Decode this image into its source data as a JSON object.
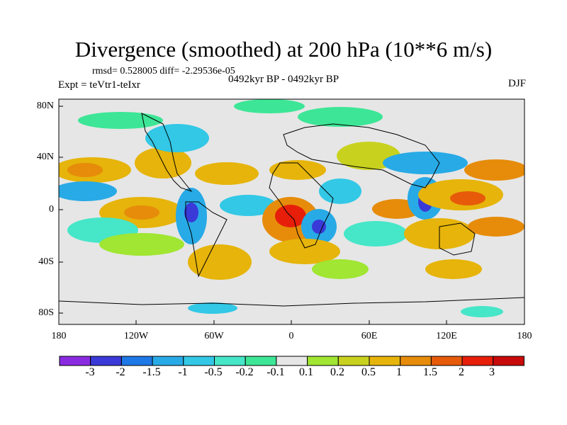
{
  "title": "Divergence (smoothed) at 200 hPa (10**6 m/s)",
  "stats": "rmsd= 0.528005 diff= -2.29536e-05",
  "expt": "Expt = teVtr1-teIxr",
  "period": "0492kyr BP - 0492kyr BP",
  "season": "DJF",
  "lat_labels": [
    "80N",
    "40N",
    "0",
    "40S",
    "80S"
  ],
  "lon_labels": [
    "180",
    "120W",
    "60W",
    "0",
    "60E",
    "120E",
    "180"
  ],
  "colorbar": {
    "labels": [
      "-3",
      "-2",
      "-1.5",
      "-1",
      "-0.5",
      "-0.2",
      "-0.1",
      "0.1",
      "0.2",
      "0.5",
      "1",
      "1.5",
      "2",
      "3"
    ],
    "colors": [
      "#8a2be2",
      "#3a3ad8",
      "#1e78e6",
      "#28aae6",
      "#32c8e6",
      "#46e6c8",
      "#3ce696",
      "#e6e6e6",
      "#a0e632",
      "#c8d21e",
      "#e6b40a",
      "#e68c0a",
      "#e65a0a",
      "#e61e0a",
      "#c80a0a"
    ]
  },
  "colors": {
    "neutral": "#e6e6e6",
    "pos_weak": "#a0e632",
    "pos_mid": "#c8d21e",
    "pos": "#e6b40a",
    "pos_strong": "#e68c0a",
    "pos_max": "#e65a0a",
    "neg_weak": "#3ce696",
    "neg_mid": "#46e6c8",
    "neg": "#32c8e6",
    "neg_strong": "#28aae6",
    "neg_max": "#1e78e6"
  }
}
